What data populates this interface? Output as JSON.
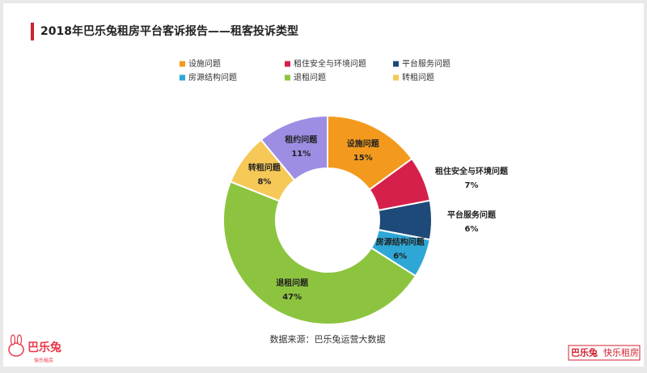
{
  "chart_data": {
    "type": "donut",
    "title": "2018年巴乐兔租房平台客诉报告——租客投诉类型",
    "categories": [
      "设施问题",
      "租住安全与环境问题",
      "平台服务问题",
      "房源结构问题",
      "退租问题",
      "转租问题",
      "租约问题"
    ],
    "values": [
      15,
      7,
      6,
      6,
      47,
      8,
      11
    ],
    "value_labels": [
      "15%",
      "7%",
      "6%",
      "6%",
      "47%",
      "8%",
      "11%"
    ],
    "colors": [
      "#f39a1e",
      "#d5204b",
      "#1d4a78",
      "#2ea7d6",
      "#8cc43f",
      "#f5c858",
      "#9d8de3"
    ],
    "legend": [
      "设施问题",
      "租住安全与环境问题",
      "平台服务问题",
      "房源结构问题",
      "退租问题",
      "转租问题"
    ],
    "source": "数据来源：巴乐兔运营大数据"
  },
  "footer": {
    "logo": "巴乐兔",
    "logo_sub": "快乐租房",
    "brand": "巴乐兔",
    "slogan": "快乐租房"
  }
}
